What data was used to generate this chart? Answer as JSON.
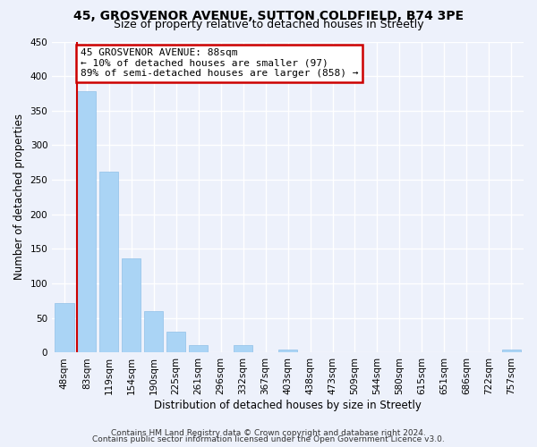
{
  "title1": "45, GROSVENOR AVENUE, SUTTON COLDFIELD, B74 3PE",
  "title2": "Size of property relative to detached houses in Streetly",
  "xlabel": "Distribution of detached houses by size in Streetly",
  "ylabel": "Number of detached properties",
  "bar_labels": [
    "48sqm",
    "83sqm",
    "119sqm",
    "154sqm",
    "190sqm",
    "225sqm",
    "261sqm",
    "296sqm",
    "332sqm",
    "367sqm",
    "403sqm",
    "438sqm",
    "473sqm",
    "509sqm",
    "544sqm",
    "580sqm",
    "615sqm",
    "651sqm",
    "686sqm",
    "722sqm",
    "757sqm"
  ],
  "bar_heights": [
    72,
    378,
    262,
    137,
    60,
    30,
    11,
    0,
    11,
    0,
    5,
    0,
    0,
    0,
    0,
    0,
    0,
    0,
    0,
    0,
    5
  ],
  "bar_color": "#aad4f5",
  "redline_x": 0.58,
  "marker_label_line1": "45 GROSVENOR AVENUE: 88sqm",
  "marker_label_line2": "← 10% of detached houses are smaller (97)",
  "marker_label_line3": "89% of semi-detached houses are larger (858) →",
  "redline_color": "#cc0000",
  "annotation_box_edge": "#cc0000",
  "ylim": [
    0,
    450
  ],
  "yticks": [
    0,
    50,
    100,
    150,
    200,
    250,
    300,
    350,
    400,
    450
  ],
  "footer1": "Contains HM Land Registry data © Crown copyright and database right 2024.",
  "footer2": "Contains public sector information licensed under the Open Government Licence v3.0.",
  "background_color": "#edf1fb",
  "grid_color": "#ffffff",
  "title1_fontsize": 10,
  "title2_fontsize": 9,
  "axis_label_fontsize": 8.5,
  "tick_fontsize": 7.5,
  "footer_fontsize": 6.5,
  "annotation_fontsize": 8
}
